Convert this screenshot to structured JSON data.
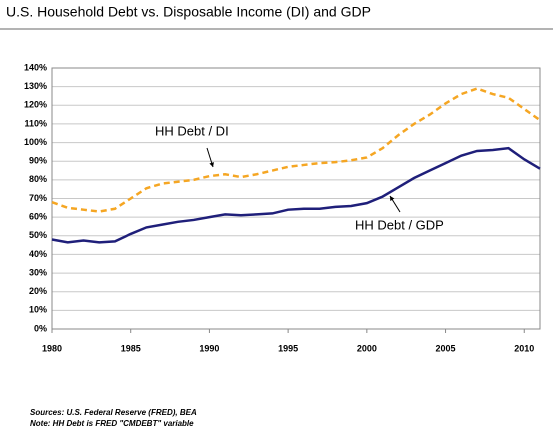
{
  "chart_data": {
    "type": "line",
    "title": "U.S. Household Debt vs. Disposable Income (DI) and GDP",
    "x": [
      1980,
      1981,
      1982,
      1983,
      1984,
      1985,
      1986,
      1987,
      1988,
      1989,
      1990,
      1991,
      1992,
      1993,
      1994,
      1995,
      1996,
      1997,
      1998,
      1999,
      2000,
      2001,
      2002,
      2003,
      2004,
      2005,
      2006,
      2007,
      2008,
      2009,
      2010,
      2011
    ],
    "series": [
      {
        "name": "HH Debt / DI",
        "color": "#f5a623",
        "dashed": true,
        "values": [
          68,
          65,
          64,
          63,
          64.5,
          70,
          75.5,
          78,
          79,
          80,
          82,
          83,
          81.5,
          83,
          85,
          87,
          88,
          89,
          89.5,
          90.5,
          92,
          97,
          104,
          110,
          115,
          121,
          126,
          129,
          126,
          124,
          118,
          112
        ]
      },
      {
        "name": "HH Debt / GDP",
        "color": "#1f1f7a",
        "dashed": false,
        "values": [
          48,
          46.5,
          47.5,
          46.5,
          47,
          51,
          54.5,
          56,
          57.5,
          58.5,
          60,
          61.5,
          61,
          61.5,
          62,
          64,
          64.5,
          64.5,
          65.5,
          66,
          67.5,
          71,
          76,
          81,
          85,
          89,
          93,
          95.5,
          96,
          97,
          91,
          86
        ]
      }
    ],
    "xlim": [
      1980,
      2011
    ],
    "xticks": [
      1980,
      1985,
      1990,
      1995,
      2000,
      2005,
      2010
    ],
    "ylim": [
      0,
      140
    ],
    "yticks": [
      {
        "value": 0,
        "label": "0%"
      },
      {
        "value": 10,
        "label": "10%"
      },
      {
        "value": 20,
        "label": "20%"
      },
      {
        "value": 30,
        "label": "30%"
      },
      {
        "value": 40,
        "label": "40%"
      },
      {
        "value": 50,
        "label": "50%"
      },
      {
        "value": 60,
        "label": "60%"
      },
      {
        "value": 70,
        "label": "70%"
      },
      {
        "value": 80,
        "label": "80%"
      },
      {
        "value": 90,
        "label": "90%"
      },
      {
        "value": 100,
        "label": "100%"
      },
      {
        "value": 110,
        "label": "110%"
      },
      {
        "value": 120,
        "label": "120%"
      },
      {
        "value": 130,
        "label": "130%"
      },
      {
        "value": 140,
        "label": "140%"
      }
    ],
    "grid": true,
    "notes": [
      "Sources: U.S. Federal Reserve (FRED), BEA",
      "Note: HH Debt is FRED \"CMDEBT\" variable"
    ]
  }
}
